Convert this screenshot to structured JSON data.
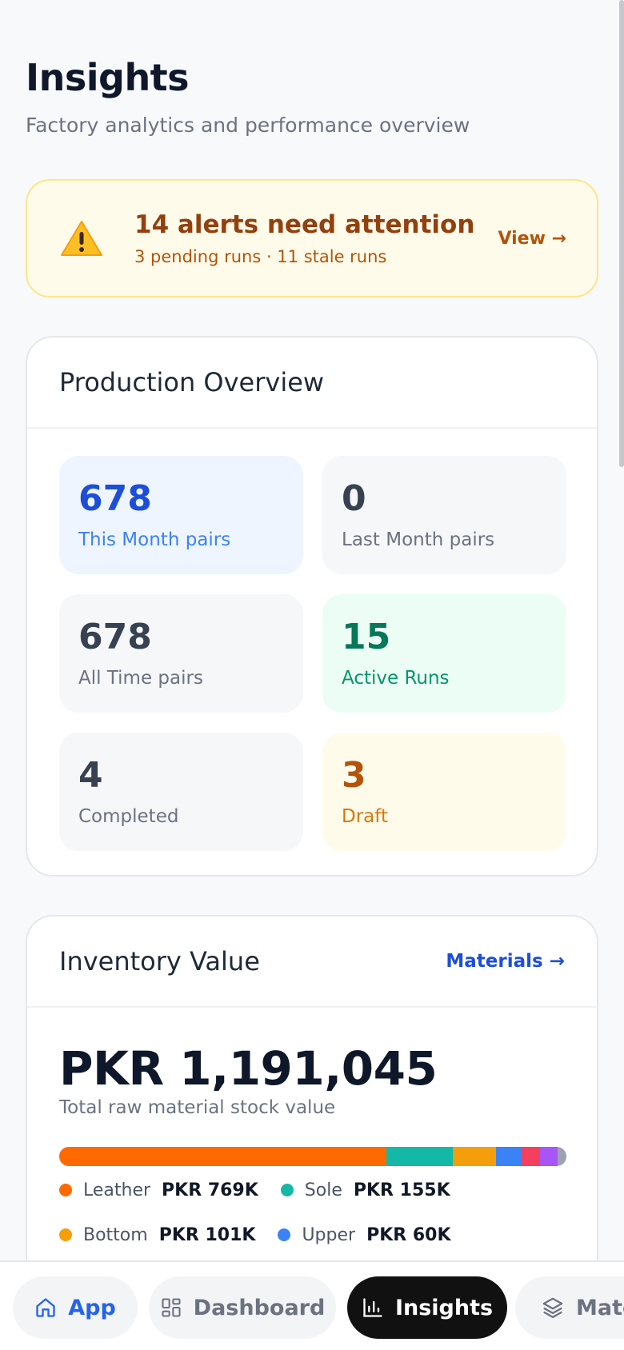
{
  "header": {
    "title": "Insights",
    "subtitle": "Factory analytics and performance overview"
  },
  "alert": {
    "title": "14 alerts need attention",
    "subtitle": "3 pending runs · 11 stale runs",
    "action_label": "View →",
    "icon": "warning-icon"
  },
  "production": {
    "title": "Production Overview",
    "stats": [
      {
        "value": "678",
        "label": "This Month pairs"
      },
      {
        "value": "0",
        "label": "Last Month pairs"
      },
      {
        "value": "678",
        "label": "All Time pairs"
      },
      {
        "value": "15",
        "label": "Active Runs"
      },
      {
        "value": "4",
        "label": "Completed"
      },
      {
        "value": "3",
        "label": "Draft"
      }
    ]
  },
  "inventory": {
    "title": "Inventory Value",
    "link_label": "Materials →",
    "total": "PKR 1,191,045",
    "caption": "Total raw material stock value",
    "breakdown": [
      {
        "name": "Leather",
        "value": "PKR 769K",
        "amount": 769,
        "color": "#ff6a00"
      },
      {
        "name": "Sole",
        "value": "PKR 155K",
        "amount": 155,
        "color": "#14b8a6"
      },
      {
        "name": "Bottom",
        "value": "PKR 101K",
        "amount": 101,
        "color": "#f59e0b"
      },
      {
        "name": "Upper",
        "value": "PKR 60K",
        "amount": 60,
        "color": "#3b82f6"
      }
    ],
    "other_segments": [
      {
        "amount": 45,
        "color": "#f43f5e"
      },
      {
        "amount": 40,
        "color": "#a855f7"
      },
      {
        "amount": 21,
        "color": "#9ca3af"
      }
    ]
  },
  "nav": {
    "items": [
      {
        "label": "App",
        "icon": "home-icon"
      },
      {
        "label": "Dashboard",
        "icon": "grid-icon"
      },
      {
        "label": "Insights",
        "icon": "bar-chart-icon"
      },
      {
        "label": "Materials",
        "icon": "layers-icon"
      }
    ]
  }
}
